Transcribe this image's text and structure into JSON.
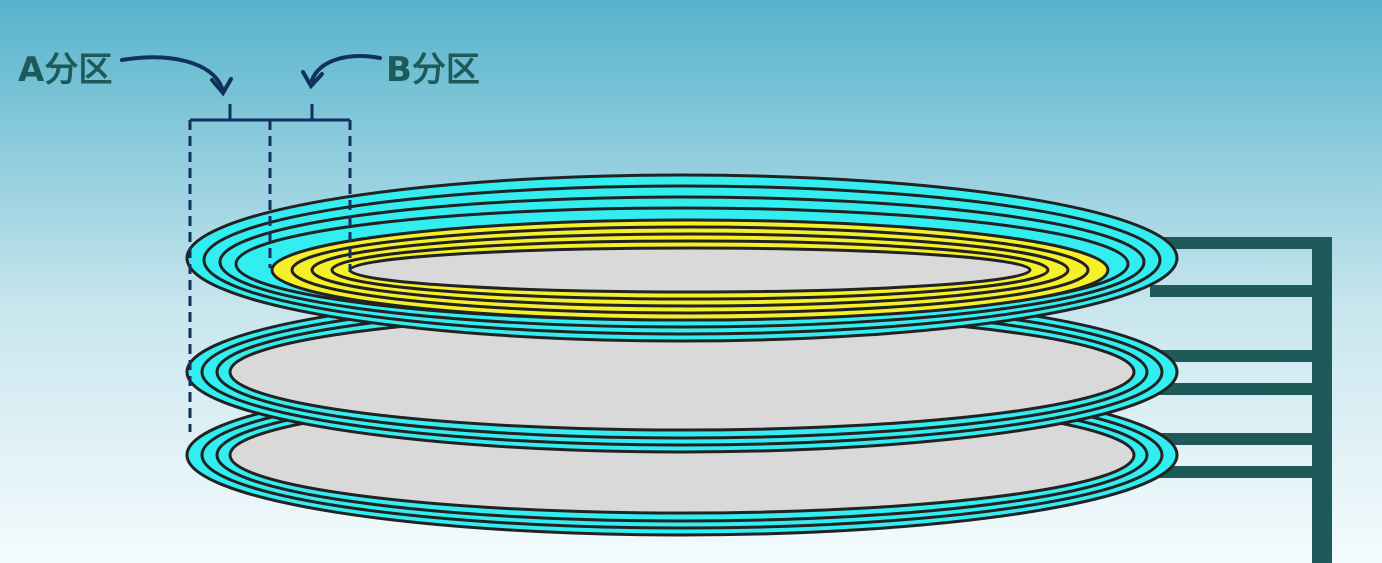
{
  "labels": {
    "partition_a": "A分区",
    "partition_b": "B分区"
  },
  "colors": {
    "background_top": "#56b3cc",
    "background_bottom": "#f4fbfd",
    "platter_track": "#33eef0",
    "partition_b_track": "#f6f02a",
    "platter_center": "#d9d9d9",
    "track_line": "#222222",
    "bracket_line": "#12305e",
    "arm": "#1f5a5a",
    "label_text": "#1f5a5a"
  },
  "diagram": {
    "platter_count": 3,
    "highlighted_partition": "B分区",
    "highlighted_platter": "top"
  }
}
